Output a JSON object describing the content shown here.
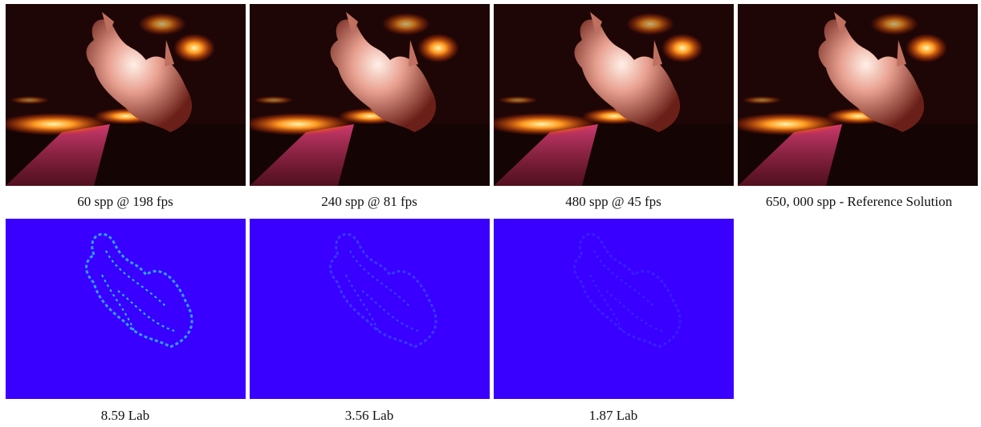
{
  "figure": {
    "renders": [
      {
        "caption": "60 spp @ 198 fps"
      },
      {
        "caption": "240 spp @ 81 fps"
      },
      {
        "caption": "480 spp @ 45 fps"
      },
      {
        "caption": "650, 000 spp - Reference Solution"
      }
    ],
    "error_maps": [
      {
        "caption": "8.59 Lab"
      },
      {
        "caption": "3.56 Lab"
      },
      {
        "caption": "1.87 Lab"
      }
    ]
  }
}
